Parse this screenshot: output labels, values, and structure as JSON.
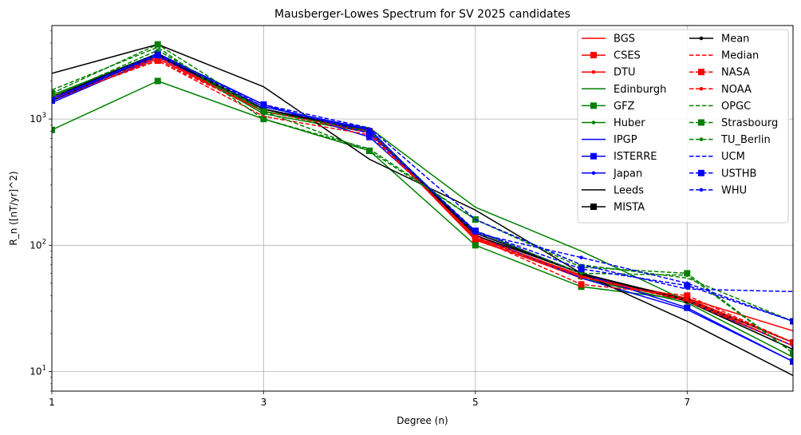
{
  "chart_data": {
    "type": "line",
    "title": "Mausberger-Lowes Spectrum for SV 2025 candidates",
    "xlabel": "Degree (n)",
    "ylabel": "R_n ([nT/yr]^2)",
    "xlim": [
      1,
      8
    ],
    "ylim": [
      7,
      5500
    ],
    "yscale": "log",
    "grid": true,
    "legend": "top-right",
    "x": [
      1,
      2,
      3,
      4,
      5,
      6,
      7,
      8
    ],
    "xticks": [
      {
        "value": 1,
        "label": "1"
      },
      {
        "value": 3,
        "label": "3"
      },
      {
        "value": 5,
        "label": "5"
      },
      {
        "value": 7,
        "label": "7"
      }
    ],
    "yticks": [
      {
        "value": 10,
        "base": "10",
        "exp": "1"
      },
      {
        "value": 100,
        "base": "10",
        "exp": "2"
      },
      {
        "value": 1000,
        "base": "10",
        "exp": "3"
      }
    ],
    "series": [
      {
        "name": "BGS",
        "color": "#ff0000",
        "dash": "solid",
        "marker": "none",
        "values": [
          1500,
          3100,
          1150,
          820,
          115,
          58,
          38,
          21
        ]
      },
      {
        "name": "CSES",
        "color": "#ff0000",
        "dash": "solid",
        "marker": "square",
        "values": [
          1400,
          3000,
          1150,
          800,
          110,
          57,
          38,
          17
        ]
      },
      {
        "name": "DTU",
        "color": "#ff0000",
        "dash": "solid",
        "marker": "dot",
        "values": [
          1450,
          3200,
          1200,
          800,
          112,
          55,
          37,
          16
        ]
      },
      {
        "name": "Edinburgh",
        "color": "#008000",
        "dash": "solid",
        "marker": "none",
        "values": [
          1550,
          3300,
          1150,
          850,
          200,
          90,
          36,
          15
        ]
      },
      {
        "name": "GFZ",
        "color": "#008000",
        "dash": "solid",
        "marker": "square",
        "values": [
          820,
          2000,
          1000,
          560,
          100,
          47,
          37,
          17
        ]
      },
      {
        "name": "Huber",
        "color": "#008000",
        "dash": "solid",
        "marker": "dot",
        "values": [
          1400,
          3300,
          1100,
          780,
          120,
          55,
          35,
          13
        ]
      },
      {
        "name": "IPGP",
        "color": "#0000ff",
        "dash": "solid",
        "marker": "none",
        "values": [
          1350,
          3100,
          1250,
          830,
          120,
          55,
          31,
          12
        ]
      },
      {
        "name": "ISTERRE",
        "color": "#0000ff",
        "dash": "solid",
        "marker": "square",
        "values": [
          1450,
          3300,
          1300,
          720,
          130,
          60,
          32,
          12
        ]
      },
      {
        "name": "Japan",
        "color": "#0000ff",
        "dash": "solid",
        "marker": "dot",
        "values": [
          1450,
          3200,
          1200,
          820,
          125,
          60,
          36,
          16
        ]
      },
      {
        "name": "Leeds",
        "color": "#000000",
        "dash": "solid",
        "marker": "none",
        "values": [
          2300,
          3900,
          1800,
          480,
          190,
          60,
          25,
          9.3
        ]
      },
      {
        "name": "MISTA",
        "color": "#000000",
        "dash": "solid",
        "marker": "square",
        "values": [
          1400,
          3200,
          1200,
          800,
          120,
          60,
          37,
          17
        ]
      },
      {
        "name": "Mean",
        "color": "#000000",
        "dash": "solid",
        "marker": "dot",
        "values": [
          1500,
          3300,
          1200,
          780,
          125,
          60,
          36,
          15
        ]
      },
      {
        "name": "Median",
        "color": "#ff0000",
        "dash": "dashed",
        "marker": "none",
        "values": [
          1450,
          2900,
          1050,
          750,
          118,
          57,
          36,
          16
        ]
      },
      {
        "name": "NASA",
        "color": "#ff0000",
        "dash": "dashed",
        "marker": "square",
        "values": [
          1450,
          2900,
          1150,
          780,
          115,
          49,
          40,
          17
        ]
      },
      {
        "name": "NOAA",
        "color": "#ff0000",
        "dash": "dashed",
        "marker": "dot",
        "values": [
          1400,
          3100,
          1150,
          800,
          115,
          56,
          37,
          17
        ]
      },
      {
        "name": "OPGC",
        "color": "#008000",
        "dash": "dashed",
        "marker": "none",
        "values": [
          1700,
          3700,
          1000,
          580,
          160,
          70,
          55,
          25
        ]
      },
      {
        "name": "Strasbourg",
        "color": "#008000",
        "dash": "dashed",
        "marker": "square",
        "values": [
          1600,
          3900,
          1150,
          560,
          160,
          67,
          60,
          14
        ]
      },
      {
        "name": "TU_Berlin",
        "color": "#008000",
        "dash": "dashed",
        "marker": "dot",
        "values": [
          1500,
          3500,
          1150,
          800,
          130,
          60,
          58,
          14
        ]
      },
      {
        "name": "UCM",
        "color": "#0000ff",
        "dash": "dashed",
        "marker": "none",
        "values": [
          1450,
          3200,
          1300,
          850,
          160,
          70,
          45,
          43
        ]
      },
      {
        "name": "USTHB",
        "color": "#0000ff",
        "dash": "dashed",
        "marker": "square",
        "values": [
          1400,
          3200,
          1300,
          770,
          130,
          65,
          48,
          25
        ]
      },
      {
        "name": "WHU",
        "color": "#0000ff",
        "dash": "dashed",
        "marker": "dot",
        "values": [
          1450,
          3300,
          1250,
          820,
          125,
          80,
          50,
          25
        ]
      }
    ]
  }
}
